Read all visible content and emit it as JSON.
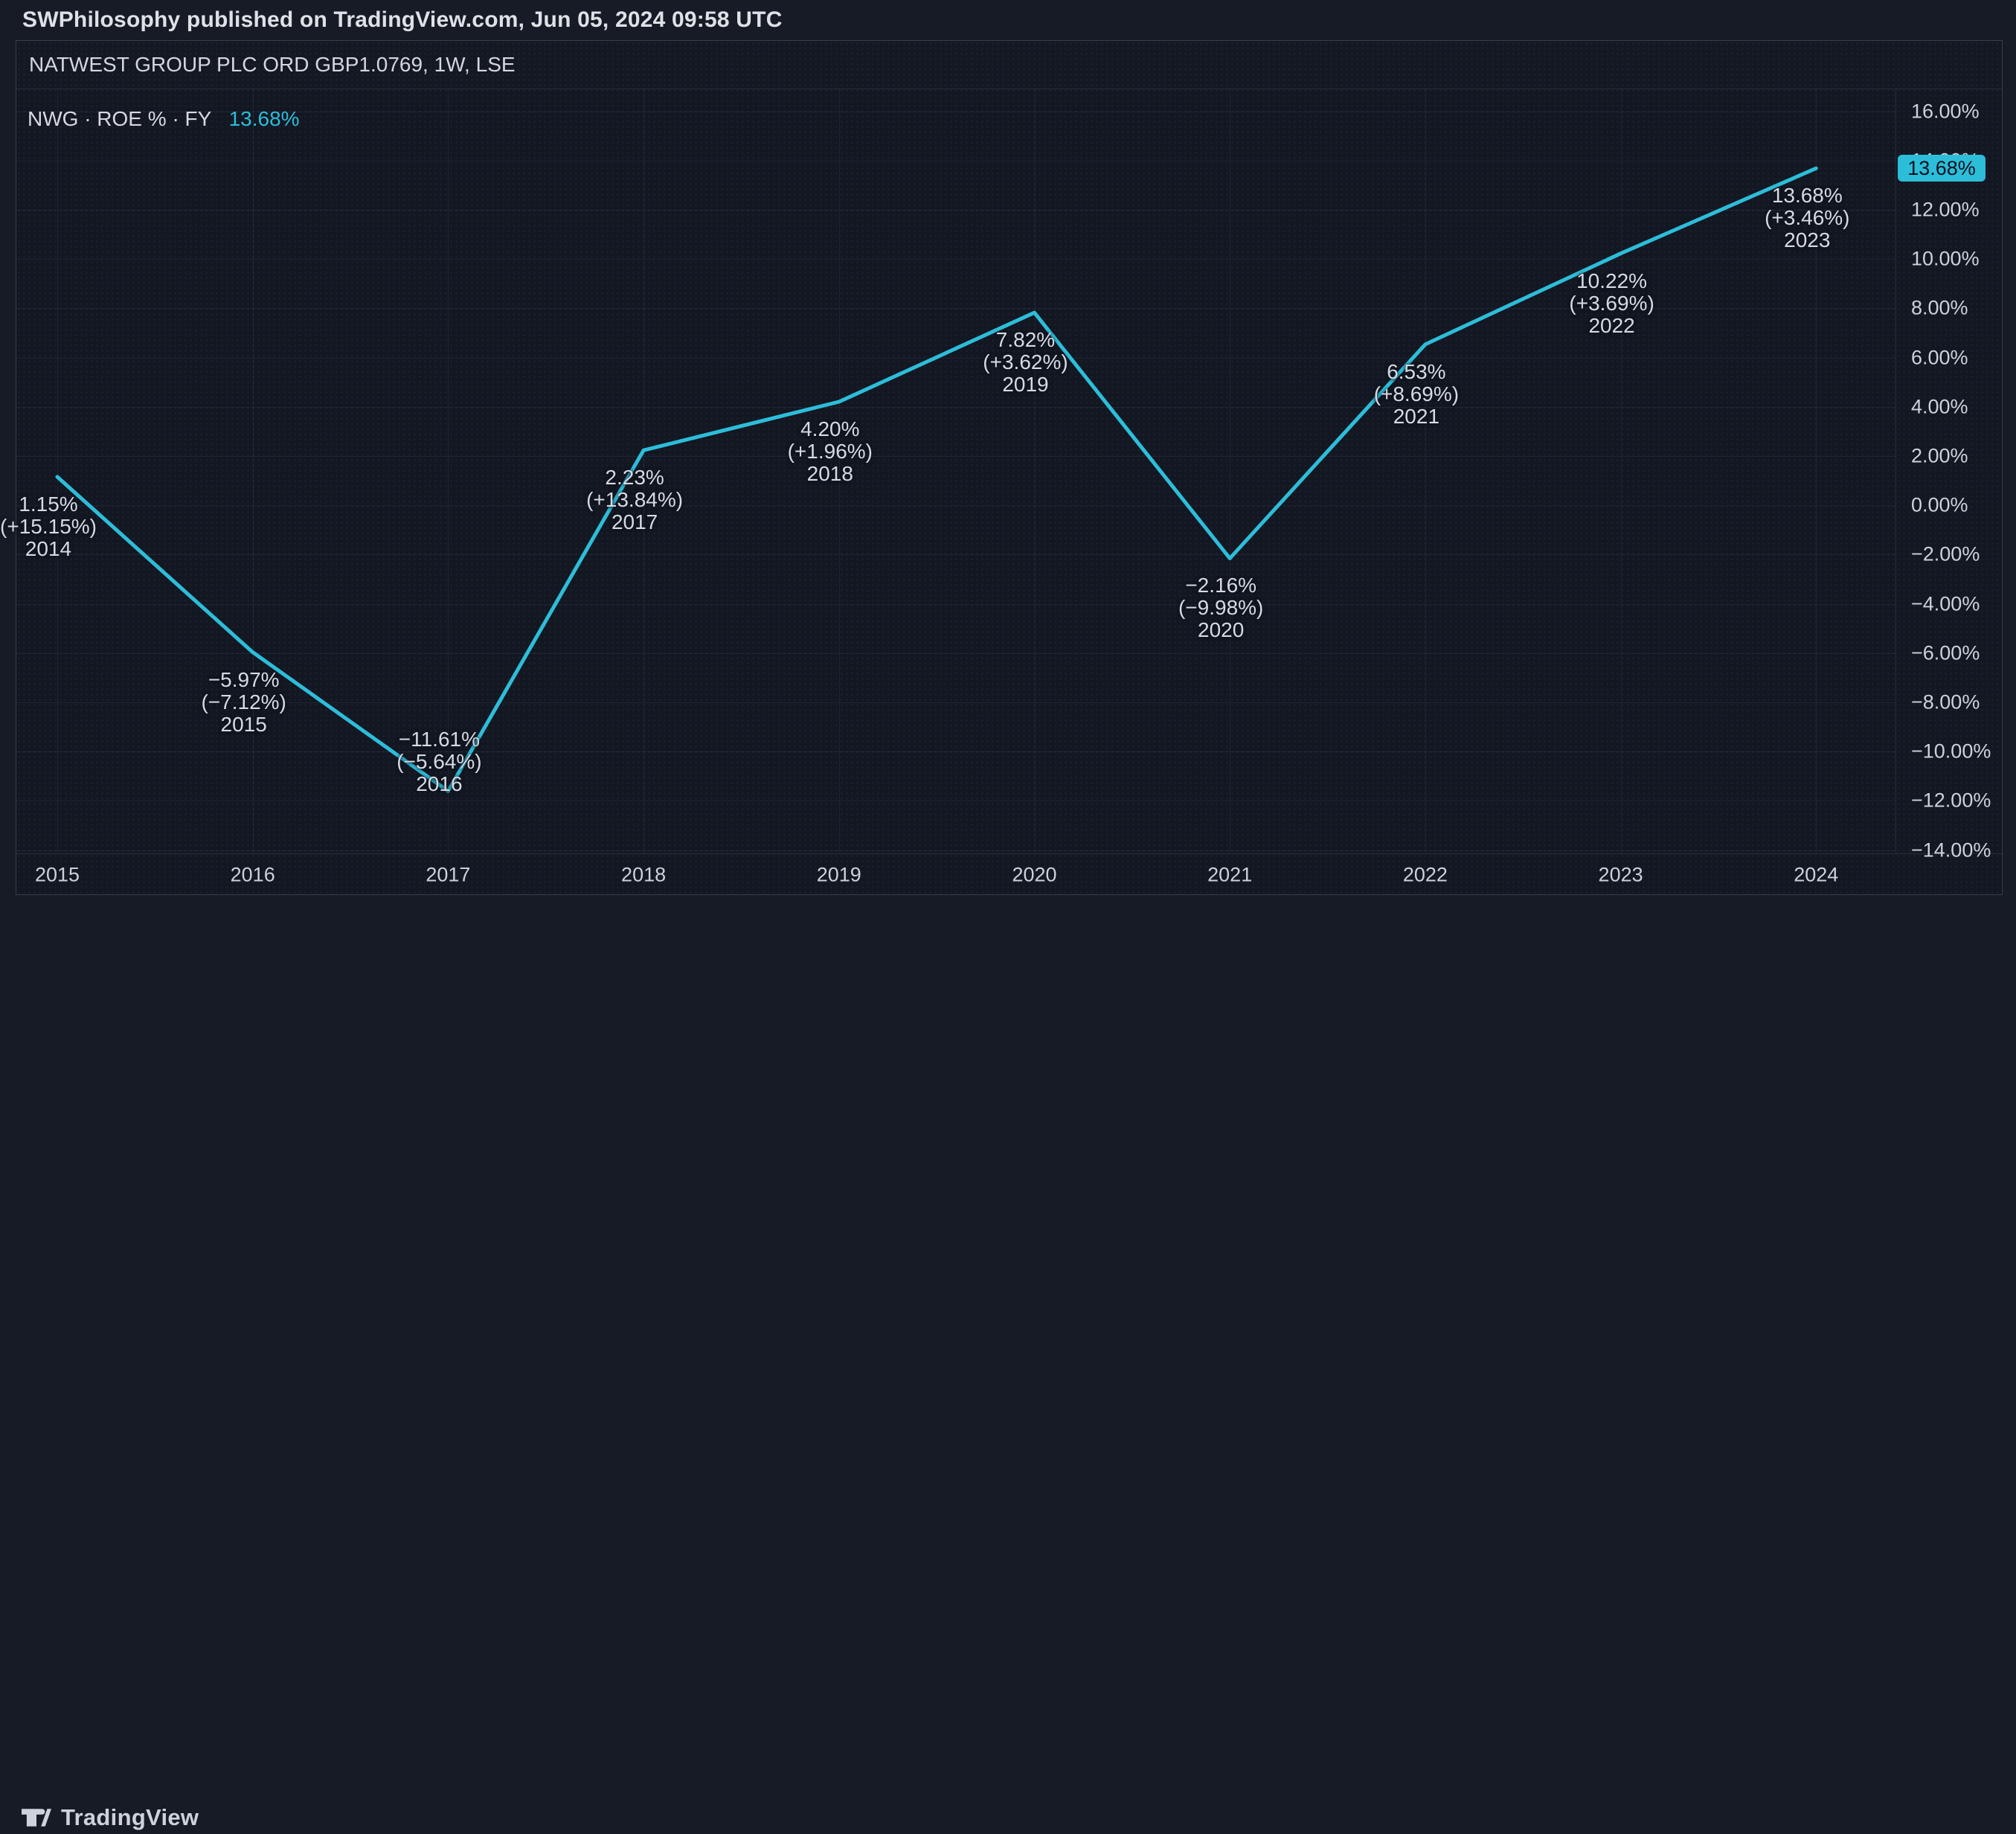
{
  "header": {
    "attribution": "SWPhilosophy published on TradingView.com, Jun 05, 2024 09:58 UTC"
  },
  "panel": {
    "symbol_title": "NATWEST GROUP PLC ORD GBP1.0769, 1W, LSE"
  },
  "legend": {
    "series_label": "NWG · ROE % · FY",
    "value": "13.68%"
  },
  "price_scale": {
    "last_value_badge": "13.68%"
  },
  "footer": {
    "brand": "TradingView"
  },
  "colors": {
    "accent": "#2CBDD9",
    "panel_bg": "#131722",
    "outer_bg": "#171B26",
    "grid": "#202433",
    "divider": "#2A2E39",
    "panel_border": "#3A3E4B",
    "badge_text": "#0B121D"
  },
  "chart_data": {
    "type": "line",
    "title": "NWG ROE % FY",
    "series_name": "NWG · ROE % · FY",
    "line_color": "#2CBDD9",
    "grid": true,
    "y_axis": {
      "min": -14,
      "max": 16,
      "tick_step": 2,
      "tick_labels": [
        "16.00%",
        "14.00%",
        "12.00%",
        "10.00%",
        "8.00%",
        "6.00%",
        "4.00%",
        "2.00%",
        "0.00%",
        "−2.00%",
        "−4.00%",
        "−6.00%",
        "−8.00%",
        "−10.00%",
        "−12.00%",
        "−14.00%"
      ]
    },
    "x_axis": {
      "tick_labels": [
        "2015",
        "2016",
        "2017",
        "2018",
        "2019",
        "2020",
        "2021",
        "2022",
        "2023",
        "2024"
      ]
    },
    "points": [
      {
        "fiscal_year": "2014",
        "value": 1.15,
        "value_label": "1.15%",
        "change_label": "(+15.15%)",
        "label_side": "below"
      },
      {
        "fiscal_year": "2015",
        "value": -5.97,
        "value_label": "−5.97%",
        "change_label": "(−7.12%)",
        "label_side": "below"
      },
      {
        "fiscal_year": "2016",
        "value": -11.61,
        "value_label": "−11.61%",
        "change_label": "(−5.64%)",
        "label_side": "above"
      },
      {
        "fiscal_year": "2017",
        "value": 2.23,
        "value_label": "2.23%",
        "change_label": "(+13.84%)",
        "label_side": "below"
      },
      {
        "fiscal_year": "2018",
        "value": 4.2,
        "value_label": "4.20%",
        "change_label": "(+1.96%)",
        "label_side": "below"
      },
      {
        "fiscal_year": "2019",
        "value": 7.82,
        "value_label": "7.82%",
        "change_label": "(+3.62%)",
        "label_side": "below"
      },
      {
        "fiscal_year": "2020",
        "value": -2.16,
        "value_label": "−2.16%",
        "change_label": "(−9.98%)",
        "label_side": "below"
      },
      {
        "fiscal_year": "2021",
        "value": 6.53,
        "value_label": "6.53%",
        "change_label": "(+8.69%)",
        "label_side": "below"
      },
      {
        "fiscal_year": "2022",
        "value": 10.22,
        "value_label": "10.22%",
        "change_label": "(+3.69%)",
        "label_side": "below"
      },
      {
        "fiscal_year": "2023",
        "value": 13.68,
        "value_label": "13.68%",
        "change_label": "(+3.46%)",
        "label_side": "below"
      }
    ],
    "last_value": 13.68
  }
}
